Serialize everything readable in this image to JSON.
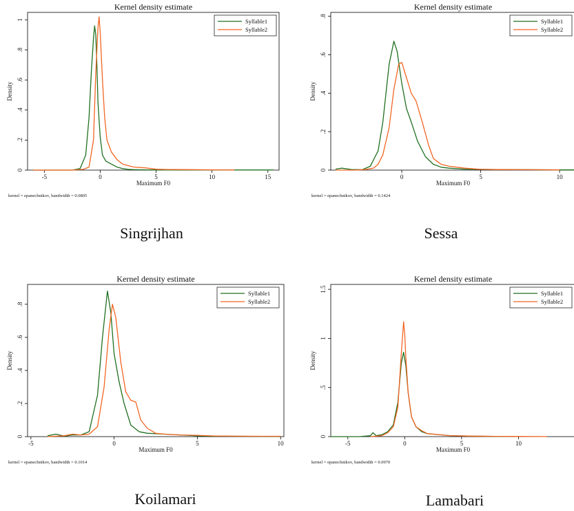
{
  "colors": {
    "syllable1": "#1f6f1f",
    "syllable2": "#f26522"
  },
  "captions": {
    "singrijhan": "Singrijhan",
    "sessa": "Sessa",
    "koilamari": "Koilamari",
    "lamabari": "Lamabari"
  },
  "chart_data": [
    {
      "id": "singrijhan",
      "type": "line",
      "title": "Kernel density estimate",
      "xlabel": "Maximum F0",
      "ylabel": "Density",
      "note": "kernel = epanechnikov, bandwidth = 0.0805",
      "xlim": [
        -6.5,
        16
      ],
      "ylim": [
        0,
        1.05
      ],
      "xticks": [
        -5,
        0,
        5,
        10,
        15
      ],
      "yticks": [
        0,
        0.2,
        0.4,
        0.6,
        0.8,
        1
      ],
      "ytick_labels": [
        "0",
        ".2",
        ".4",
        ".6",
        ".8",
        "1"
      ],
      "legend": "top-right",
      "series": [
        {
          "name": "Syllable1",
          "color_key": "syllable1",
          "x": [
            -6,
            -2.5,
            -1.8,
            -1.3,
            -1,
            -0.8,
            -0.6,
            -0.5,
            -0.4,
            -0.3,
            -0.2,
            0,
            0.2,
            0.5,
            1,
            1.5,
            2,
            2.5,
            3,
            4,
            6,
            10,
            15.5
          ],
          "y": [
            0,
            0,
            0.01,
            0.1,
            0.35,
            0.65,
            0.88,
            0.96,
            0.9,
            0.7,
            0.45,
            0.22,
            0.1,
            0.06,
            0.04,
            0.02,
            0.01,
            0.005,
            0.003,
            0.002,
            0.001,
            0.001,
            0.001
          ]
        },
        {
          "name": "Syllable2",
          "color_key": "syllable2",
          "x": [
            -6,
            -2.5,
            -1.5,
            -1,
            -0.6,
            -0.4,
            -0.2,
            -0.1,
            0,
            0.2,
            0.4,
            0.6,
            1,
            1.5,
            2,
            2.5,
            3,
            4,
            5,
            6,
            8,
            10,
            12
          ],
          "y": [
            0,
            0,
            0.005,
            0.02,
            0.2,
            0.65,
            0.95,
            1.02,
            0.92,
            0.6,
            0.35,
            0.2,
            0.12,
            0.07,
            0.04,
            0.03,
            0.02,
            0.015,
            0.006,
            0.004,
            0.003,
            0.002,
            0.001
          ]
        }
      ]
    },
    {
      "id": "sessa",
      "type": "line",
      "title": "Kernel density estimate",
      "xlabel": "Maximum F0",
      "ylabel": "Density",
      "note": "kernel = epanechnikov, bandwidth = 0.1424",
      "xlim": [
        -4.5,
        11
      ],
      "ylim": [
        0,
        0.82
      ],
      "xticks": [
        -5,
        0,
        5,
        10
      ],
      "yticks": [
        0,
        0.2,
        0.4,
        0.6,
        0.8
      ],
      "ytick_labels": [
        "0",
        ".2",
        ".4",
        ".6",
        ".8"
      ],
      "legend": "top-right",
      "series": [
        {
          "name": "Syllable1",
          "color_key": "syllable1",
          "x": [
            -4.2,
            -3.8,
            -3.2,
            -2.5,
            -2,
            -1.5,
            -1.2,
            -0.8,
            -0.5,
            -0.3,
            0,
            0.3,
            0.6,
            1,
            1.5,
            2,
            2.5,
            3,
            4,
            6,
            8,
            10,
            11
          ],
          "y": [
            0.005,
            0.01,
            0.003,
            0.002,
            0.02,
            0.1,
            0.25,
            0.55,
            0.67,
            0.62,
            0.45,
            0.32,
            0.25,
            0.15,
            0.07,
            0.03,
            0.015,
            0.01,
            0.005,
            0.003,
            0.002,
            0.001,
            0.001
          ]
        },
        {
          "name": "Syllable2",
          "color_key": "syllable2",
          "x": [
            -4.2,
            -3,
            -2.3,
            -1.8,
            -1.5,
            -1.2,
            -0.8,
            -0.5,
            -0.2,
            0,
            0.3,
            0.6,
            0.9,
            1.3,
            1.7,
            2,
            2.5,
            3,
            4,
            5,
            6,
            8,
            10
          ],
          "y": [
            0,
            0,
            0.003,
            0.01,
            0.03,
            0.08,
            0.22,
            0.42,
            0.55,
            0.56,
            0.48,
            0.4,
            0.36,
            0.25,
            0.13,
            0.06,
            0.03,
            0.02,
            0.01,
            0.004,
            0.003,
            0.002,
            0.001
          ]
        }
      ]
    },
    {
      "id": "koilamari",
      "type": "line",
      "title": "Kernel density estimate",
      "xlabel": "Maximum F0",
      "ylabel": "Density",
      "note": "kernel = epanechnikov, bandwidth = 0.1014",
      "xlim": [
        -5.2,
        10.2
      ],
      "ylim": [
        0,
        0.92
      ],
      "xticks": [
        -5,
        0,
        5,
        10
      ],
      "yticks": [
        0,
        0.2,
        0.4,
        0.6,
        0.8
      ],
      "ytick_labels": [
        "0",
        ".2",
        ".4",
        ".6",
        ".8"
      ],
      "legend": "top-right",
      "series": [
        {
          "name": "Syllable1",
          "color_key": "syllable1",
          "x": [
            -4,
            -3.5,
            -3,
            -2.5,
            -2,
            -1.5,
            -1,
            -0.7,
            -0.4,
            -0.2,
            0,
            0.3,
            0.6,
            1,
            1.5,
            2,
            3,
            4,
            5,
            6,
            8,
            10
          ],
          "y": [
            0.005,
            0.015,
            0.003,
            0.01,
            0.01,
            0.03,
            0.25,
            0.6,
            0.88,
            0.75,
            0.5,
            0.33,
            0.2,
            0.07,
            0.03,
            0.02,
            0.015,
            0.01,
            0.005,
            0.003,
            0.002,
            0.001
          ]
        },
        {
          "name": "Syllable2",
          "color_key": "syllable2",
          "x": [
            -4,
            -3,
            -2.5,
            -2,
            -1.5,
            -1,
            -0.6,
            -0.3,
            -0.1,
            0.1,
            0.4,
            0.7,
            1,
            1.3,
            1.6,
            2,
            2.5,
            3,
            4,
            5,
            6,
            8,
            10
          ],
          "y": [
            0,
            0.005,
            0.015,
            0.01,
            0.015,
            0.06,
            0.3,
            0.65,
            0.8,
            0.72,
            0.45,
            0.27,
            0.22,
            0.21,
            0.1,
            0.05,
            0.02,
            0.015,
            0.01,
            0.008,
            0.004,
            0.002,
            0.002
          ]
        }
      ]
    },
    {
      "id": "lamabari",
      "type": "line",
      "title": "Kernel density estimate",
      "xlabel": "Maximum F0",
      "ylabel": "Density",
      "note": "kernel = epanechnikov, bandwidth = 0.0970",
      "xlim": [
        -6.5,
        15
      ],
      "ylim": [
        0,
        1.55
      ],
      "xticks": [
        -5,
        0,
        5,
        10
      ],
      "yticks": [
        0,
        0.5,
        1,
        1.5
      ],
      "ytick_labels": [
        "0",
        ".5",
        "1",
        "1.5"
      ],
      "legend": "top-right",
      "series": [
        {
          "name": "Syllable1",
          "color_key": "syllable1",
          "x": [
            -6.5,
            -4,
            -3,
            -2.8,
            -2.5,
            -2,
            -1.5,
            -1,
            -0.6,
            -0.3,
            -0.1,
            0.1,
            0.3,
            0.6,
            1,
            1.5,
            2,
            3,
            4,
            6,
            8,
            10
          ],
          "y": [
            0,
            0,
            0.01,
            0.04,
            0.01,
            0.02,
            0.05,
            0.12,
            0.35,
            0.75,
            0.86,
            0.72,
            0.45,
            0.2,
            0.1,
            0.05,
            0.03,
            0.02,
            0.01,
            0.005,
            0.002,
            0.001
          ]
        },
        {
          "name": "Syllable2",
          "color_key": "syllable2",
          "x": [
            -3,
            -2.5,
            -2,
            -1.5,
            -1,
            -0.6,
            -0.3,
            -0.1,
            0,
            0.1,
            0.3,
            0.6,
            1,
            1.5,
            2,
            3,
            4,
            6,
            8,
            10,
            12.5
          ],
          "y": [
            0,
            0.005,
            0.01,
            0.04,
            0.1,
            0.3,
            0.85,
            1.17,
            1.05,
            0.8,
            0.45,
            0.2,
            0.1,
            0.06,
            0.03,
            0.02,
            0.01,
            0.005,
            0.003,
            0.002,
            0.001
          ]
        }
      ]
    }
  ]
}
